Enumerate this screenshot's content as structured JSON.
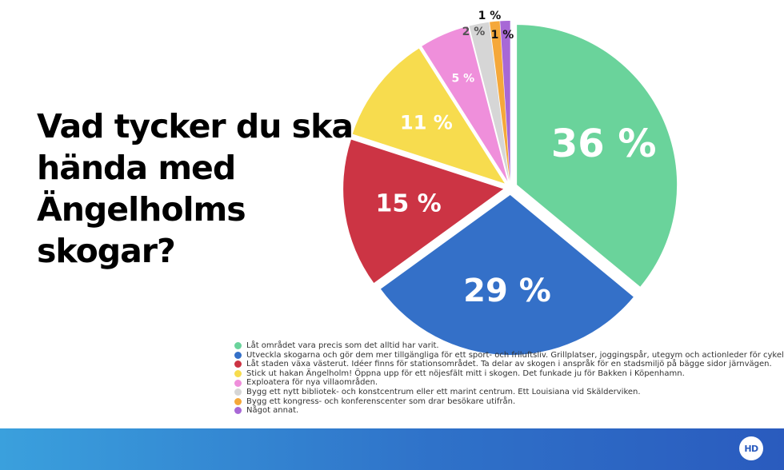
{
  "title": "Vad tycker du ska hända med Ängelholms skogar?",
  "logo_text": "HD",
  "chart_data": {
    "type": "pie",
    "title": "Vad tycker du ska hända med Ängelholms skogar?",
    "slices": [
      {
        "label": "36 %",
        "value": 36,
        "color": "#6ad39b",
        "legend": "Låt området vara precis som det alltid har varit."
      },
      {
        "label": "29 %",
        "value": 29,
        "color": "#3470c8",
        "legend": "Utveckla skogarna och gör dem mer tillgängliga för ett sport- och friluftsliv. Grillplatser, joggingspår, utegym och actionleder för cykel."
      },
      {
        "label": "15 %",
        "value": 15,
        "color": "#cc3444",
        "legend": "Låt staden växa västerut. Idéer finns för stationsområdet. Ta delar av skogen i anspråk för en stadsmiljö på bägge sidor järnvägen."
      },
      {
        "label": "11 %",
        "value": 11,
        "color": "#f7dc4e",
        "legend": "Stick ut hakan Ängelholm! Öppna upp för ett nöjesfält mitt i skogen. Det funkade ju för Bakken i Köpenhamn."
      },
      {
        "label": "5 %",
        "value": 5,
        "color": "#ef8fdb",
        "legend": "Exploatera för nya villaområden."
      },
      {
        "label": "2 %",
        "value": 2,
        "color": "#d6d6d6",
        "legend": "Bygg ett nytt bibliotek- och konstcentrum eller ett marint centrum. Ett Louisiana vid Skälderviken."
      },
      {
        "label": "1 %",
        "value": 1,
        "color": "#f5a83a",
        "legend": "Bygg ett kongress- och konferenscenter som drar besökare utifrån."
      },
      {
        "label": "1 %",
        "value": 1,
        "color": "#a868d6",
        "legend": "Något annat."
      }
    ],
    "legend_position": "bottom"
  }
}
